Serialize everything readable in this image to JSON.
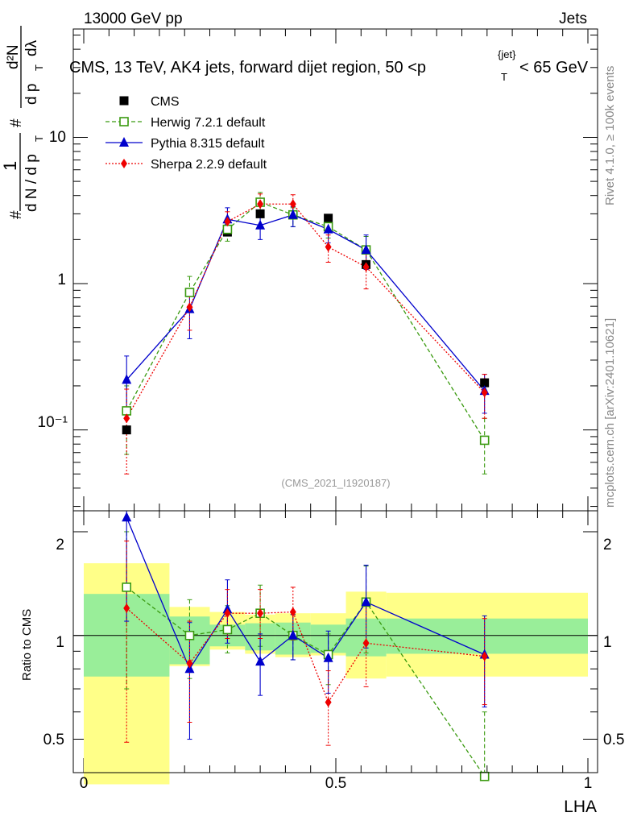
{
  "header": {
    "left": "13000 GeV pp",
    "right": "Jets",
    "side_top": "Rivet 4.1.0, ≥ 100k events",
    "side_bottom": "mcplots.cern.ch [arXiv:2401.10621]"
  },
  "chart_data": {
    "type": "scatter",
    "title": "CMS, 13 TeV, AK4 jets, forward dijet region, 50 <p_T^{jet}< 65 GeV",
    "title_main": "CMS, 13 TeV, AK4 jets, forward dijet region, 50 <p",
    "title_sup": "{jet}",
    "title_sub": "T",
    "title_end": "< 65 GeV",
    "analysis_id": "(CMS_2021_I1920187)",
    "xlabel": "LHA",
    "ylabel": "1/dN/dp_T · d²N/dp_T dλ",
    "ylabel_parts": {
      "hash": "#",
      "one": "1",
      "dN": "d N / d p",
      "T": "T",
      "d2N": "d²N",
      "dpdl": "d p",
      "dl": "dλ"
    },
    "ratio_ylabel": "Ratio to CMS",
    "xlim": [
      0,
      1
    ],
    "ylim_main": [
      0.028,
      55
    ],
    "ylim_ratio": [
      0.4,
      2.3
    ],
    "y_scale_main": "log",
    "y_scale_ratio": "log",
    "x_ticks": [
      "0",
      "0.5",
      "1"
    ],
    "y_ticks_main": [
      "10⁻¹",
      "1",
      "10"
    ],
    "y_ticks_ratio": [
      "0.5",
      "1",
      "2"
    ],
    "bin_edges": [
      0,
      0.17,
      0.25,
      0.32,
      0.38,
      0.45,
      0.52,
      0.6,
      1.0
    ],
    "x": [
      0.085,
      0.21,
      0.285,
      0.35,
      0.415,
      0.485,
      0.56,
      0.795
    ],
    "legend": [
      "CMS",
      "Herwig 7.2.1 default",
      "Pythia 8.315 default",
      "Sherpa 2.2.9 default"
    ],
    "data_band_inner": [
      0.76,
      0.825,
      0.93,
      0.905,
      0.88,
      0.89,
      0.87,
      0.885
    ],
    "data_band_inner_hi": [
      1.32,
      1.135,
      1.075,
      1.085,
      1.09,
      1.075,
      1.12,
      1.12
    ],
    "data_band_outer_lo": [
      0.37,
      0.815,
      0.91,
      0.885,
      0.865,
      0.875,
      0.75,
      0.76
    ],
    "data_band_outer_hi": [
      1.62,
      1.21,
      1.17,
      1.15,
      1.16,
      1.16,
      1.34,
      1.33
    ],
    "series": [
      {
        "name": "CMS",
        "color": "#000000",
        "marker": "square-filled",
        "values": [
          0.1,
          0.87,
          2.25,
          3.0,
          2.95,
          2.8,
          1.35,
          0.21
        ]
      },
      {
        "name": "Herwig 7.2.1 default",
        "color": "#3a9a10",
        "marker": "square-open",
        "dash": "dashed",
        "values": [
          0.135,
          0.87,
          2.35,
          3.6,
          2.95,
          2.45,
          1.7,
          0.085
        ],
        "err_lo": [
          0.068,
          0.7,
          1.95,
          2.9,
          2.45,
          2.05,
          1.3,
          0.05
        ],
        "err_hi": [
          0.2,
          1.12,
          2.75,
          4.2,
          3.3,
          2.85,
          2.1,
          0.12
        ],
        "ratio": [
          1.38,
          1.0,
          1.04,
          1.16,
          1.0,
          0.88,
          1.25,
          0.39
        ],
        "ratio_lo": [
          0.7,
          0.75,
          0.89,
          0.93,
          0.85,
          0.72,
          0.89,
          0.3
        ],
        "ratio_hi": [
          2.0,
          1.27,
          1.22,
          1.4,
          1.15,
          1.01,
          1.59,
          0.6
        ]
      },
      {
        "name": "Pythia 8.315 default",
        "color": "#0000cc",
        "marker": "triangle",
        "dash": "solid",
        "values": [
          0.22,
          0.67,
          2.75,
          2.5,
          2.95,
          2.35,
          1.7,
          0.185
        ],
        "err_lo": [
          0.12,
          0.42,
          2.25,
          2.0,
          2.45,
          1.9,
          1.25,
          0.13
        ],
        "err_hi": [
          0.32,
          0.92,
          3.3,
          3.0,
          3.35,
          2.8,
          2.15,
          0.24
        ],
        "ratio": [
          2.2,
          0.8,
          1.19,
          0.84,
          1.0,
          0.86,
          1.25,
          0.88
        ],
        "ratio_lo": [
          1.1,
          0.5,
          0.95,
          0.67,
          0.85,
          0.68,
          0.92,
          0.62
        ],
        "ratio_hi": [
          3.3,
          1.09,
          1.45,
          1.01,
          1.15,
          1.03,
          1.6,
          1.14
        ]
      },
      {
        "name": "Sherpa 2.2.9 default",
        "color": "#ee0000",
        "marker": "diamond",
        "dash": "dotted",
        "values": [
          0.12,
          0.69,
          2.65,
          3.5,
          3.5,
          1.78,
          1.3,
          0.18
        ],
        "err_lo": [
          0.05,
          0.48,
          2.2,
          2.95,
          2.9,
          1.4,
          0.92,
          0.12
        ],
        "err_hi": [
          0.19,
          0.9,
          3.1,
          4.1,
          4.05,
          2.15,
          1.65,
          0.24
        ],
        "ratio": [
          1.2,
          0.83,
          1.16,
          1.16,
          1.17,
          0.64,
          0.95,
          0.87
        ],
        "ratio_lo": [
          0.49,
          0.56,
          0.98,
          0.98,
          0.97,
          0.48,
          0.71,
          0.63
        ],
        "ratio_hi": [
          1.88,
          1.1,
          1.36,
          1.36,
          1.38,
          0.79,
          1.22,
          1.12
        ]
      }
    ]
  }
}
